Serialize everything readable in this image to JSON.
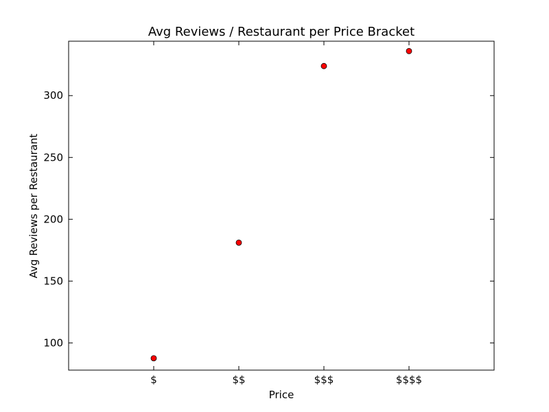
{
  "chart_data": {
    "type": "scatter",
    "title": "Avg Reviews / Restaurant per Price Bracket",
    "xlabel": "Price",
    "ylabel": "Avg Reviews per Restaurant",
    "categories": [
      "$",
      "$$",
      "$$$",
      "$$$$"
    ],
    "values": [
      87.6,
      181.1,
      323.9,
      336.0
    ],
    "ylim": [
      78,
      344
    ],
    "yticks": [
      100,
      150,
      200,
      250,
      300
    ],
    "grid": false,
    "marker_color": "#ff0000",
    "frame_color": "#000000"
  }
}
